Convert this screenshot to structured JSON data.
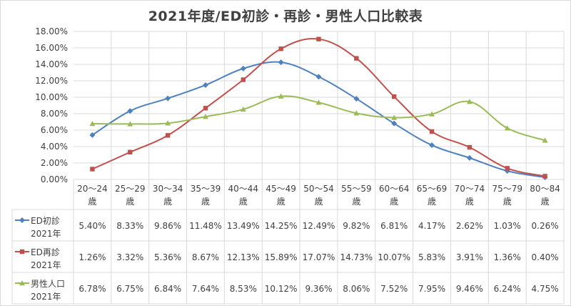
{
  "chart_data": {
    "type": "line",
    "title": "2021年度/ED初診・再診・男性人口比較表",
    "categories": [
      "20～24",
      "25～29",
      "30～34",
      "35～39",
      "40～44",
      "45～49",
      "50～54",
      "55～59",
      "60～64",
      "65～69",
      "70～74",
      "75～79",
      "80～84"
    ],
    "category_suffix": "歳",
    "y_tick_labels": [
      "0.00%",
      "2.00%",
      "4.00%",
      "6.00%",
      "8.00%",
      "10.00%",
      "12.00%",
      "14.00%",
      "16.00%",
      "18.00%"
    ],
    "ylim": [
      0,
      18
    ],
    "grid": true,
    "legend_placement": "data-table",
    "series": [
      {
        "name_line1": "ED初診",
        "name_line2": "2021年",
        "color": "#4f81bd",
        "marker": "diamond",
        "values": [
          5.4,
          8.33,
          9.86,
          11.48,
          13.49,
          14.25,
          12.49,
          9.82,
          6.81,
          4.17,
          2.62,
          1.03,
          0.26
        ],
        "labels": [
          "5.40%",
          "8.33%",
          "9.86%",
          "11.48%",
          "13.49%",
          "14.25%",
          "12.49%",
          "9.82%",
          "6.81%",
          "4.17%",
          "2.62%",
          "1.03%",
          "0.26%"
        ]
      },
      {
        "name_line1": "ED再診",
        "name_line2": "2021年",
        "color": "#c0504d",
        "marker": "square",
        "values": [
          1.26,
          3.32,
          5.36,
          8.67,
          12.13,
          15.89,
          17.07,
          14.73,
          10.07,
          5.83,
          3.91,
          1.36,
          0.4
        ],
        "labels": [
          "1.26%",
          "3.32%",
          "5.36%",
          "8.67%",
          "12.13%",
          "15.89%",
          "17.07%",
          "14.73%",
          "10.07%",
          "5.83%",
          "3.91%",
          "1.36%",
          "0.40%"
        ]
      },
      {
        "name_line1": "男性人口",
        "name_line2": "2021年",
        "color": "#9bbb59",
        "marker": "triangle",
        "values": [
          6.78,
          6.75,
          6.84,
          7.64,
          8.53,
          10.12,
          9.36,
          8.06,
          7.52,
          7.95,
          9.46,
          6.24,
          4.75
        ],
        "labels": [
          "6.78%",
          "6.75%",
          "6.84%",
          "7.64%",
          "8.53%",
          "10.12%",
          "9.36%",
          "8.06%",
          "7.52%",
          "7.95%",
          "9.46%",
          "6.24%",
          "4.75%"
        ]
      }
    ]
  }
}
